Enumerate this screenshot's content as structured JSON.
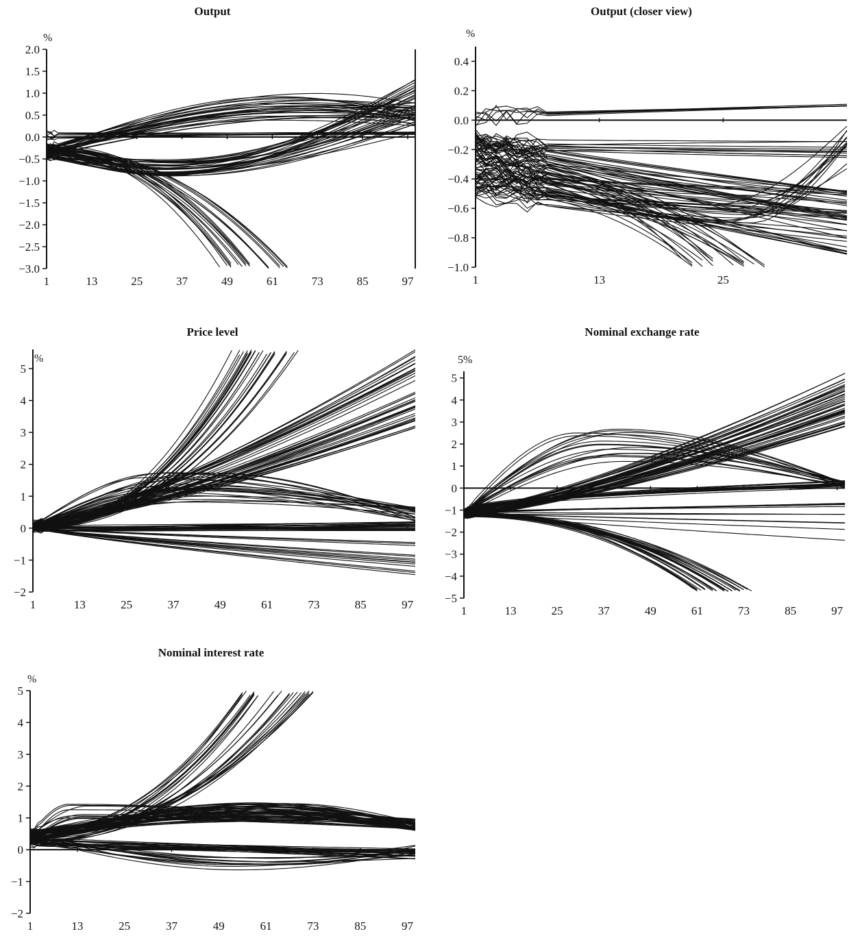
{
  "chart_data": [
    {
      "id": "output",
      "type": "line",
      "title": "Output",
      "unit_label": "%",
      "ylim": [
        -3.0,
        2.0
      ],
      "xlim": [
        1,
        99
      ],
      "yticks": [
        "2.0",
        "1.5",
        "1.0",
        "0.5",
        "0.0",
        "−0.5",
        "−1.0",
        "−1.5",
        "−2.0",
        "−2.5",
        "−3.0"
      ],
      "ytick_values": [
        2.0,
        1.5,
        1.0,
        0.5,
        0.0,
        -0.5,
        -1.0,
        -1.5,
        -2.0,
        -2.5,
        -3.0
      ],
      "xticks": [
        "1",
        "13",
        "25",
        "37",
        "49",
        "61",
        "73",
        "85",
        "97"
      ],
      "xtick_values": [
        1,
        13,
        25,
        37,
        49,
        61,
        73,
        85,
        97
      ],
      "zero_line": true,
      "right_axis": true,
      "series_groups": [
        {
          "kind": "collapse",
          "count": 22,
          "start": [
            -0.15,
            -0.45
          ],
          "end_x": [
            47,
            66
          ],
          "end_y": -3.0
        },
        {
          "kind": "hump",
          "count": 26,
          "start": [
            -0.2,
            -0.45
          ],
          "peak_x": [
            60,
            78
          ],
          "peak_y": [
            0.3,
            1.0
          ],
          "end": [
            0.2,
            0.8
          ]
        },
        {
          "kind": "trough",
          "count": 30,
          "start": [
            -0.2,
            -0.5
          ],
          "trough_x": [
            30,
            40
          ],
          "trough_y": [
            -0.9,
            -0.5
          ],
          "end": [
            0.0,
            1.35
          ]
        },
        {
          "kind": "flat",
          "count": 8,
          "start": [
            -0.05,
            0.1
          ],
          "end": [
            0.05,
            0.12
          ]
        }
      ]
    },
    {
      "id": "output-closer",
      "type": "line",
      "title": "Output (closer view)",
      "unit_label": "%",
      "ylim": [
        -1.0,
        0.5
      ],
      "xlim": [
        1,
        37
      ],
      "yticks": [
        "0.4",
        "0.2",
        "0.0",
        "−0.2",
        "−0.4",
        "−0.6",
        "−0.8",
        "−1.0"
      ],
      "ytick_values": [
        0.4,
        0.2,
        0.0,
        -0.2,
        -0.4,
        -0.6,
        -0.8,
        -1.0
      ],
      "xticks": [
        "1",
        "13",
        "25"
      ],
      "xtick_values": [
        1,
        13,
        25
      ],
      "zero_line": true,
      "right_axis": false,
      "series_groups": [
        {
          "kind": "collapse",
          "count": 20,
          "start": [
            -0.2,
            -0.5
          ],
          "end_x": [
            21,
            30
          ],
          "end_y": -1.0
        },
        {
          "kind": "decline",
          "count": 45,
          "start": [
            -0.1,
            -0.55
          ],
          "end": [
            -0.95,
            -0.45
          ]
        },
        {
          "kind": "rebound",
          "count": 12,
          "start": [
            -0.2,
            -0.45
          ],
          "trough_x": [
            24,
            30
          ],
          "trough_y": [
            -0.7,
            -0.5
          ],
          "end": [
            -0.35,
            0.0
          ]
        },
        {
          "kind": "plateau",
          "count": 10,
          "start": [
            -0.1,
            -0.2
          ],
          "end": [
            -0.27,
            -0.12
          ]
        },
        {
          "kind": "flat",
          "count": 6,
          "start": [
            0.0,
            0.05
          ],
          "end": [
            0.08,
            0.12
          ]
        }
      ]
    },
    {
      "id": "price-level",
      "type": "line",
      "title": "Price level",
      "unit_label": "%",
      "ylim": [
        -2,
        5.6
      ],
      "xlim": [
        1,
        99
      ],
      "yticks": [
        "5",
        "4",
        "3",
        "2",
        "1",
        "0",
        "−1",
        "−2"
      ],
      "ytick_values": [
        5,
        4,
        3,
        2,
        1,
        0,
        -1,
        -2
      ],
      "xticks": [
        "1",
        "13",
        "25",
        "37",
        "49",
        "61",
        "73",
        "85",
        "97"
      ],
      "xtick_values": [
        1,
        13,
        25,
        37,
        49,
        61,
        73,
        85,
        97
      ],
      "zero_line": true,
      "right_axis": false,
      "series_groups": [
        {
          "kind": "explode",
          "count": 28,
          "start": [
            0.0,
            0.1
          ],
          "end_x": [
            51,
            70
          ],
          "end_y": 5.6
        },
        {
          "kind": "rise",
          "count": 40,
          "start": [
            0.0,
            0.2
          ],
          "end": [
            3.1,
            5.6
          ]
        },
        {
          "kind": "hump",
          "count": 22,
          "start": [
            0.0,
            0.1
          ],
          "peak_x": [
            28,
            50
          ],
          "peak_y": [
            0.8,
            1.8
          ],
          "end": [
            0.2,
            0.7
          ]
        },
        {
          "kind": "flat",
          "count": 18,
          "start": [
            -0.1,
            0.1
          ],
          "end": [
            -0.1,
            0.2
          ]
        },
        {
          "kind": "sag",
          "count": 14,
          "start": [
            0.0,
            0.0
          ],
          "end": [
            -1.5,
            -0.3
          ]
        }
      ]
    },
    {
      "id": "nominal-exchange-rate",
      "type": "line",
      "title": "Nominal exchange rate",
      "unit_label": "5%",
      "ylim": [
        -5,
        5.3
      ],
      "xlim": [
        1,
        99
      ],
      "yticks": [
        "5",
        "4",
        "3",
        "2",
        "1",
        "0",
        "−1",
        "−2",
        "−3",
        "−4",
        "−5"
      ],
      "ytick_values": [
        5,
        4,
        3,
        2,
        1,
        0,
        -1,
        -2,
        -3,
        -4,
        -5
      ],
      "xticks": [
        "1",
        "13",
        "25",
        "37",
        "49",
        "61",
        "73",
        "85",
        "97"
      ],
      "xtick_values": [
        1,
        13,
        25,
        37,
        49,
        61,
        73,
        85,
        97
      ],
      "zero_line": true,
      "right_axis": false,
      "series_groups": [
        {
          "kind": "collapse",
          "count": 28,
          "start": [
            -1.1,
            -1.3
          ],
          "end_x": [
            60,
            76
          ],
          "end_y": -4.7
        },
        {
          "kind": "rise",
          "count": 45,
          "start": [
            -1.0,
            -1.3
          ],
          "end": [
            2.6,
            5.3
          ]
        },
        {
          "kind": "hump",
          "count": 16,
          "start": [
            -1.0,
            -1.2
          ],
          "peak_x": [
            30,
            45
          ],
          "peak_y": [
            1.0,
            2.7
          ],
          "end": [
            0.0,
            0.3
          ]
        },
        {
          "kind": "plateau",
          "count": 14,
          "start": [
            -1.0,
            -1.2
          ],
          "end": [
            0.0,
            0.35
          ]
        },
        {
          "kind": "sag",
          "count": 10,
          "start": [
            -1.0,
            -1.2
          ],
          "end": [
            -2.4,
            -0.6
          ]
        }
      ]
    },
    {
      "id": "nominal-interest-rate",
      "type": "line",
      "title": "Nominal interest rate",
      "unit_label": "%",
      "ylim": [
        -2,
        5
      ],
      "xlim": [
        1,
        99
      ],
      "yticks": [
        "5",
        "4",
        "3",
        "2",
        "1",
        "0",
        "−1",
        "−2"
      ],
      "ytick_values": [
        5,
        4,
        3,
        2,
        1,
        0,
        -1,
        -2
      ],
      "xticks": [
        "1",
        "13",
        "25",
        "37",
        "49",
        "61",
        "73",
        "85",
        "97"
      ],
      "xtick_values": [
        1,
        13,
        25,
        37,
        49,
        61,
        73,
        85,
        97
      ],
      "zero_line": true,
      "right_axis": false,
      "series_groups": [
        {
          "kind": "explode",
          "count": 26,
          "start": [
            0.2,
            0.6
          ],
          "end_x": [
            55,
            74
          ],
          "end_y": 5.0
        },
        {
          "kind": "hump",
          "count": 45,
          "start": [
            0.2,
            0.6
          ],
          "peak_x": [
            50,
            70
          ],
          "peak_y": [
            0.9,
            1.5
          ],
          "end": [
            0.6,
            0.95
          ]
        },
        {
          "kind": "early-hump",
          "count": 10,
          "start": [
            0.2,
            0.5
          ],
          "peak_x": [
            10,
            16
          ],
          "peak_y": [
            0.9,
            1.5
          ],
          "end": [
            0.6,
            1.0
          ]
        },
        {
          "kind": "dip",
          "count": 12,
          "start": [
            0.2,
            0.5
          ],
          "trough_x": [
            50,
            66
          ],
          "trough_y": [
            -0.65,
            -0.2
          ],
          "end": [
            -0.3,
            0.2
          ]
        },
        {
          "kind": "flat",
          "count": 20,
          "start": [
            0.1,
            0.4
          ],
          "end": [
            -0.3,
            0.05
          ]
        }
      ]
    }
  ]
}
